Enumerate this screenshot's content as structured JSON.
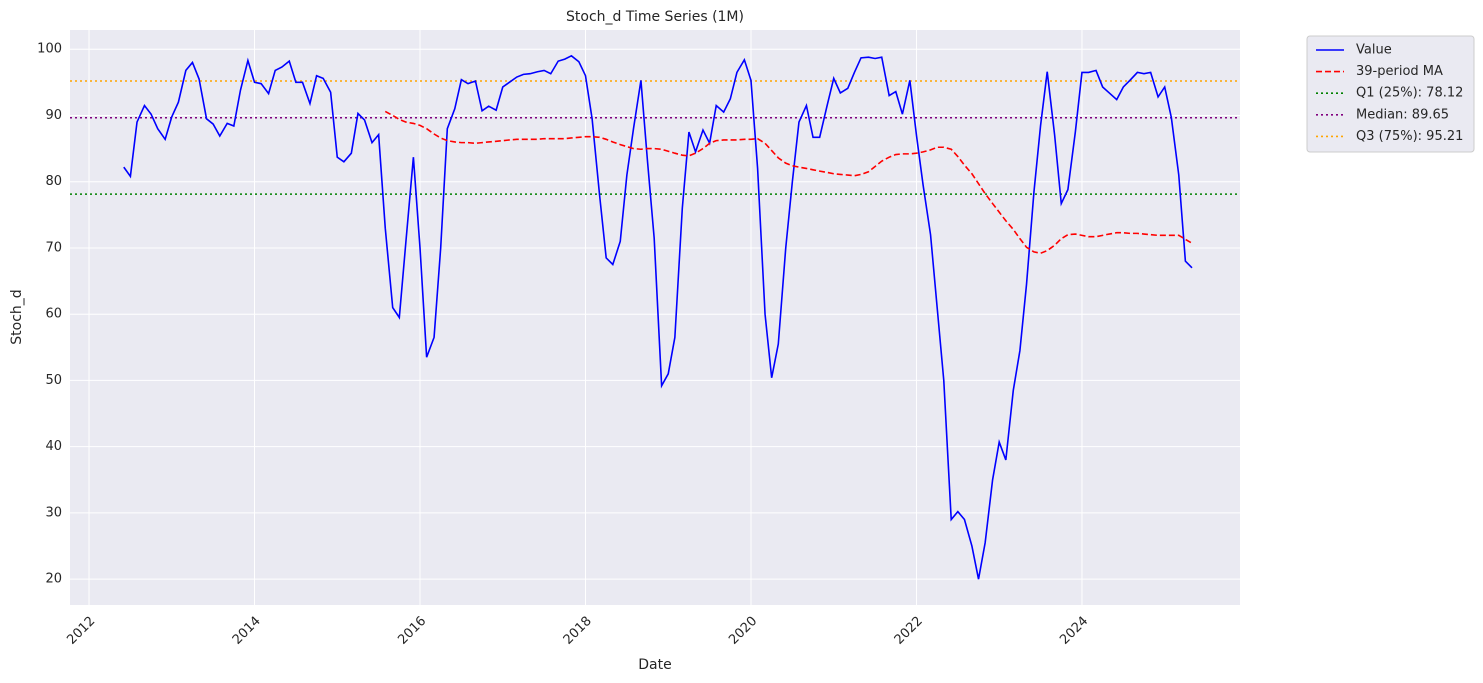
{
  "chart_data": {
    "type": "line",
    "title": "Stoch_d Time Series (1M)",
    "x_label": "Date",
    "y_label": "Stoch_d",
    "grid": true,
    "legend": "outside upper right",
    "xlim": [
      2011.77,
      2025.91
    ],
    "xticks": [
      2012,
      2014,
      2016,
      2018,
      2020,
      2022,
      2024
    ],
    "ylim": [
      16.1,
      102.9
    ],
    "yticks": [
      20,
      30,
      40,
      50,
      60,
      70,
      80,
      90,
      100
    ],
    "x": [
      2012.42,
      2012.5,
      2012.58,
      2012.67,
      2012.75,
      2012.83,
      2012.92,
      2013.0,
      2013.08,
      2013.17,
      2013.25,
      2013.33,
      2013.42,
      2013.5,
      2013.58,
      2013.67,
      2013.75,
      2013.83,
      2013.92,
      2014.0,
      2014.08,
      2014.17,
      2014.25,
      2014.33,
      2014.42,
      2014.5,
      2014.58,
      2014.67,
      2014.75,
      2014.83,
      2014.92,
      2015.0,
      2015.08,
      2015.17,
      2015.25,
      2015.33,
      2015.42,
      2015.5,
      2015.58,
      2015.67,
      2015.75,
      2015.83,
      2015.92,
      2016.0,
      2016.08,
      2016.17,
      2016.25,
      2016.33,
      2016.42,
      2016.5,
      2016.58,
      2016.67,
      2016.75,
      2016.83,
      2016.92,
      2017.0,
      2017.08,
      2017.17,
      2017.25,
      2017.33,
      2017.42,
      2017.5,
      2017.58,
      2017.67,
      2017.75,
      2017.83,
      2017.92,
      2018.0,
      2018.08,
      2018.17,
      2018.25,
      2018.33,
      2018.42,
      2018.5,
      2018.58,
      2018.67,
      2018.75,
      2018.83,
      2018.92,
      2019.0,
      2019.08,
      2019.17,
      2019.25,
      2019.33,
      2019.42,
      2019.5,
      2019.58,
      2019.67,
      2019.75,
      2019.83,
      2019.92,
      2020.0,
      2020.08,
      2020.17,
      2020.25,
      2020.33,
      2020.42,
      2020.5,
      2020.58,
      2020.67,
      2020.75,
      2020.83,
      2020.92,
      2021.0,
      2021.08,
      2021.17,
      2021.25,
      2021.33,
      2021.42,
      2021.5,
      2021.58,
      2021.67,
      2021.75,
      2021.83,
      2021.92,
      2022.0,
      2022.08,
      2022.17,
      2022.25,
      2022.33,
      2022.42,
      2022.5,
      2022.58,
      2022.67,
      2022.75,
      2022.83,
      2022.92,
      2023.0,
      2023.08,
      2023.17,
      2023.25,
      2023.33,
      2023.42,
      2023.5,
      2023.58,
      2023.67,
      2023.75,
      2023.83,
      2023.92,
      2024.0,
      2024.08,
      2024.17,
      2024.25,
      2024.33,
      2024.42,
      2024.5,
      2024.58,
      2024.67,
      2024.75,
      2024.83,
      2024.92,
      2025.0,
      2025.08,
      2025.17,
      2025.25,
      2025.33
    ],
    "series": [
      {
        "name": "Value",
        "color": "#0000ff",
        "style": "solid",
        "values": [
          82.2,
          80.8,
          89.0,
          91.5,
          90.2,
          88.0,
          86.4,
          89.8,
          92.0,
          96.8,
          98.0,
          95.5,
          89.5,
          88.7,
          86.9,
          88.8,
          88.4,
          93.8,
          98.3,
          95.0,
          94.8,
          93.3,
          96.8,
          97.3,
          98.2,
          95.0,
          95.0,
          91.8,
          96.0,
          95.6,
          93.5,
          83.7,
          83.0,
          84.3,
          90.3,
          89.3,
          85.9,
          87.1,
          73.0,
          61.0,
          59.5,
          71.0,
          83.7,
          70.0,
          53.5,
          56.5,
          70.0,
          88.0,
          91.0,
          95.4,
          94.8,
          95.2,
          90.7,
          91.4,
          90.8,
          94.3,
          95.0,
          95.8,
          96.2,
          96.3,
          96.6,
          96.8,
          96.3,
          98.2,
          98.5,
          99.0,
          98.1,
          96.0,
          89.5,
          78.0,
          68.5,
          67.5,
          71.0,
          81.0,
          88.0,
          95.3,
          83.0,
          71.5,
          49.2,
          51.0,
          56.5,
          76.0,
          87.5,
          84.5,
          87.8,
          85.8,
          91.5,
          90.5,
          92.5,
          96.5,
          98.4,
          95.3,
          82.0,
          60.0,
          50.4,
          55.5,
          70.0,
          80.0,
          89.0,
          91.5,
          86.7,
          86.7,
          91.5,
          95.6,
          93.4,
          94.1,
          96.5,
          98.7,
          98.8,
          98.6,
          98.8,
          93.0,
          93.6,
          90.2,
          95.3,
          87.0,
          79.5,
          72.0,
          61.0,
          50.0,
          29.0,
          30.2,
          29.0,
          25.0,
          20.0,
          25.5,
          35.0,
          40.7,
          38.0,
          48.5,
          54.5,
          64.5,
          78.5,
          88.5,
          96.6,
          87.0,
          76.7,
          78.8,
          87.5,
          96.5,
          96.5,
          96.8,
          94.3,
          93.4,
          92.4,
          94.3,
          95.3,
          96.5,
          96.3,
          96.5,
          92.8,
          94.3,
          89.7,
          81.0,
          68.0,
          67.0
        ]
      },
      {
        "name": "39-period MA",
        "color": "#ff0000",
        "style": "dashed",
        "values": [
          null,
          null,
          null,
          null,
          null,
          null,
          null,
          null,
          null,
          null,
          null,
          null,
          null,
          null,
          null,
          null,
          null,
          null,
          null,
          null,
          null,
          null,
          null,
          null,
          null,
          null,
          null,
          null,
          null,
          null,
          null,
          null,
          null,
          null,
          null,
          null,
          null,
          null,
          90.6,
          90.0,
          89.4,
          89.0,
          88.8,
          88.5,
          88.0,
          87.2,
          86.6,
          86.2,
          86.0,
          85.9,
          85.9,
          85.8,
          85.9,
          86.0,
          86.1,
          86.2,
          86.3,
          86.4,
          86.4,
          86.4,
          86.4,
          86.5,
          86.5,
          86.5,
          86.5,
          86.6,
          86.7,
          86.8,
          86.8,
          86.7,
          86.4,
          86.0,
          85.6,
          85.3,
          85.0,
          84.9,
          85.0,
          85.0,
          84.9,
          84.6,
          84.3,
          84.0,
          83.9,
          84.3,
          85.0,
          85.8,
          86.2,
          86.3,
          86.3,
          86.3,
          86.4,
          86.4,
          86.5,
          85.8,
          84.7,
          83.6,
          82.8,
          82.4,
          82.2,
          82.0,
          81.8,
          81.6,
          81.4,
          81.2,
          81.1,
          81.0,
          80.9,
          81.1,
          81.5,
          82.3,
          83.1,
          83.7,
          84.1,
          84.2,
          84.2,
          84.3,
          84.5,
          84.8,
          85.2,
          85.2,
          84.9,
          83.8,
          82.5,
          81.2,
          79.7,
          78.2,
          76.7,
          75.4,
          74.1,
          72.8,
          71.4,
          70.1,
          69.4,
          69.2,
          69.6,
          70.4,
          71.4,
          72.0,
          72.1,
          71.9,
          71.7,
          71.7,
          71.9,
          72.1,
          72.3,
          72.3,
          72.2,
          72.2,
          72.1,
          72.0,
          71.9,
          71.9,
          71.9,
          71.9,
          71.3,
          70.7
        ]
      }
    ],
    "reference_lines": [
      {
        "name": "Q1 (25%): 78.12",
        "value": 78.12,
        "color": "#008000",
        "style": "dotted"
      },
      {
        "name": "Median: 89.65",
        "value": 89.65,
        "color": "#800080",
        "style": "dotted"
      },
      {
        "name": "Q3 (75%): 95.21",
        "value": 95.21,
        "color": "#ffa500",
        "style": "dotted"
      }
    ]
  }
}
